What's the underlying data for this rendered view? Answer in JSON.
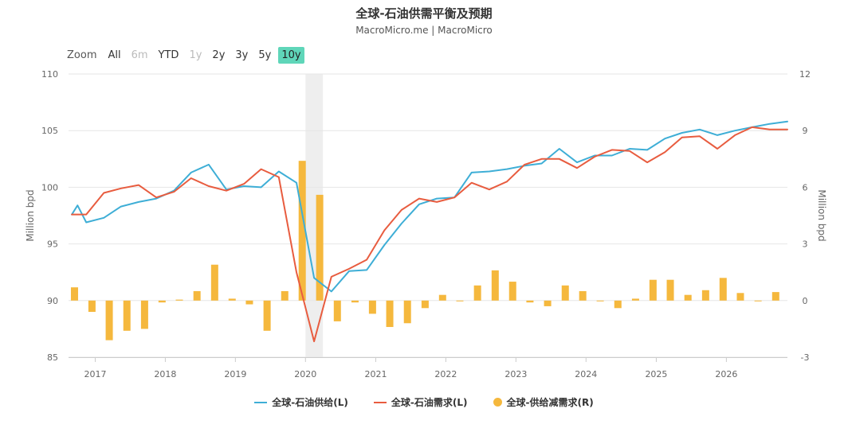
{
  "header": {
    "title": "全球-石油供需平衡及预期",
    "subtitle": "MacroMicro.me | MacroMicro"
  },
  "zoom": {
    "label": "Zoom",
    "buttons": [
      {
        "label": "All",
        "state": "enabled"
      },
      {
        "label": "6m",
        "state": "disabled"
      },
      {
        "label": "YTD",
        "state": "enabled"
      },
      {
        "label": "1y",
        "state": "disabled"
      },
      {
        "label": "2y",
        "state": "enabled"
      },
      {
        "label": "3y",
        "state": "enabled"
      },
      {
        "label": "5y",
        "state": "enabled"
      },
      {
        "label": "10y",
        "state": "active"
      }
    ],
    "active_color": "#5fd6b9"
  },
  "chart_data": {
    "type": "line",
    "title": "全球-石油供需平衡及预期",
    "subtitle": "MacroMicro.me | MacroMicro",
    "x_axis": {
      "type": "date",
      "range": [
        "2016-08-15",
        "2026-11-15"
      ],
      "tick_labels": [
        "2017",
        "2018",
        "2019",
        "2020",
        "2021",
        "2022",
        "2023",
        "2024",
        "2025",
        "2026"
      ]
    },
    "y_left": {
      "label": "Million bpd",
      "range": [
        85,
        110
      ],
      "ticks": [
        85,
        90,
        95,
        100,
        105,
        110
      ]
    },
    "y_right": {
      "label": "Million bpd",
      "range": [
        -3,
        12
      ],
      "ticks": [
        -3,
        0,
        3,
        6,
        9,
        12
      ]
    },
    "grid": true,
    "legend_position": "bottom-center",
    "shaded_band": {
      "from": "2020-01-01",
      "to": "2020-04-01",
      "color": "#eeeeee"
    },
    "series": [
      {
        "name": "全球-石油供给(L)",
        "axis": "left",
        "kind": "line",
        "color": "#3eaed6",
        "x": [
          "2016-09-01",
          "2016-10-01",
          "2016-11-15",
          "2017-02-15",
          "2017-05-15",
          "2017-08-15",
          "2017-11-15",
          "2018-02-15",
          "2018-05-15",
          "2018-08-15",
          "2018-11-15",
          "2019-02-15",
          "2019-05-15",
          "2019-08-15",
          "2019-11-15",
          "2020-02-15",
          "2020-05-15",
          "2020-08-15",
          "2020-11-15",
          "2021-02-15",
          "2021-05-15",
          "2021-08-15",
          "2021-11-15",
          "2022-02-15",
          "2022-05-15",
          "2022-08-15",
          "2022-11-15",
          "2023-02-15",
          "2023-05-15",
          "2023-08-15",
          "2023-11-15",
          "2024-02-15",
          "2024-05-15",
          "2024-08-15",
          "2024-11-15",
          "2025-02-15",
          "2025-05-15",
          "2025-08-15",
          "2025-11-15",
          "2026-02-15",
          "2026-05-15",
          "2026-08-15",
          "2026-11-15"
        ],
        "values": [
          97.6,
          98.4,
          96.9,
          97.3,
          98.3,
          98.7,
          99.0,
          99.7,
          101.3,
          102.0,
          99.8,
          100.1,
          100.0,
          101.4,
          100.4,
          92.0,
          90.8,
          92.6,
          92.7,
          94.9,
          96.8,
          98.5,
          99.0,
          99.1,
          101.3,
          101.4,
          101.6,
          101.9,
          102.1,
          103.4,
          102.2,
          102.8,
          102.8,
          103.4,
          103.3,
          104.3,
          104.8,
          105.1,
          104.6,
          105.0,
          105.3,
          105.6,
          105.8
        ]
      },
      {
        "name": "全球-石油需求(L)",
        "axis": "left",
        "kind": "line",
        "color": "#e85c3f",
        "x": [
          "2016-09-01",
          "2016-11-15",
          "2017-02-15",
          "2017-05-15",
          "2017-08-15",
          "2017-11-15",
          "2018-02-15",
          "2018-05-15",
          "2018-08-15",
          "2018-11-15",
          "2019-02-15",
          "2019-05-15",
          "2019-08-15",
          "2019-11-15",
          "2020-02-15",
          "2020-05-15",
          "2020-08-15",
          "2020-11-15",
          "2021-02-15",
          "2021-05-15",
          "2021-08-15",
          "2021-11-15",
          "2022-02-15",
          "2022-05-15",
          "2022-08-15",
          "2022-11-15",
          "2023-02-15",
          "2023-05-15",
          "2023-08-15",
          "2023-11-15",
          "2024-02-15",
          "2024-05-15",
          "2024-08-15",
          "2024-11-15",
          "2025-02-15",
          "2025-05-15",
          "2025-08-15",
          "2025-11-15",
          "2026-02-15",
          "2026-05-15",
          "2026-08-15",
          "2026-11-15"
        ],
        "values": [
          97.6,
          97.6,
          99.5,
          99.9,
          100.2,
          99.1,
          99.6,
          100.8,
          100.1,
          99.7,
          100.3,
          101.6,
          100.9,
          92.5,
          86.4,
          92.1,
          92.8,
          93.6,
          96.2,
          98.0,
          99.0,
          98.7,
          99.1,
          100.4,
          99.8,
          100.5,
          102.0,
          102.5,
          102.5,
          101.7,
          102.7,
          103.3,
          103.2,
          102.2,
          103.1,
          104.4,
          104.5,
          103.4,
          104.6,
          105.3,
          105.1,
          105.1
        ]
      },
      {
        "name": "全球-供给减需求(R)",
        "axis": "right",
        "kind": "bar",
        "color": "#f5b83d",
        "x": [
          "2016-09-15",
          "2016-12-15",
          "2017-03-15",
          "2017-06-15",
          "2017-09-15",
          "2017-12-15",
          "2018-03-15",
          "2018-06-15",
          "2018-09-15",
          "2018-12-15",
          "2019-03-15",
          "2019-06-15",
          "2019-09-15",
          "2019-12-15",
          "2020-03-15",
          "2020-06-15",
          "2020-09-15",
          "2020-12-15",
          "2021-03-15",
          "2021-06-15",
          "2021-09-15",
          "2021-12-15",
          "2022-03-15",
          "2022-06-15",
          "2022-09-15",
          "2022-12-15",
          "2023-03-15",
          "2023-06-15",
          "2023-09-15",
          "2023-12-15",
          "2024-03-15",
          "2024-06-15",
          "2024-09-15",
          "2024-12-15",
          "2025-03-15",
          "2025-06-15",
          "2025-09-15",
          "2025-12-15",
          "2026-03-15",
          "2026-06-15",
          "2026-09-15"
        ],
        "values": [
          0.7,
          -0.6,
          -2.1,
          -1.6,
          -1.5,
          -0.1,
          0.05,
          0.5,
          1.9,
          0.1,
          -0.2,
          -1.6,
          0.5,
          7.4,
          5.6,
          -1.1,
          -0.1,
          -0.7,
          -1.4,
          -1.2,
          -0.4,
          0.3,
          0.0,
          0.8,
          1.6,
          1.0,
          -0.1,
          -0.3,
          0.8,
          0.5,
          0.0,
          -0.4,
          0.1,
          1.1,
          1.1,
          0.3,
          0.55,
          1.2,
          0.4,
          0.0,
          0.45
        ]
      }
    ]
  }
}
